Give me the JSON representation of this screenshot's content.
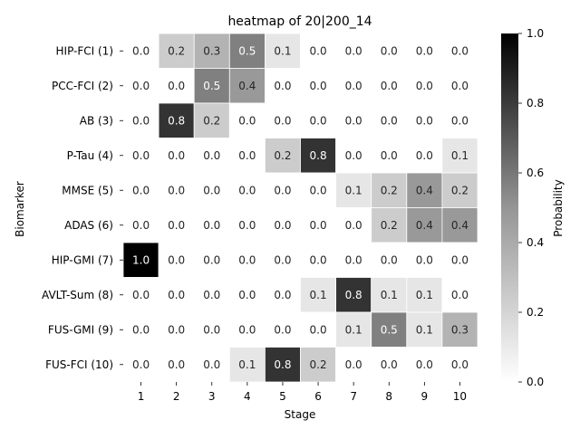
{
  "chart_data": {
    "type": "heatmap",
    "title": "heatmap of 20|200_14",
    "xlabel": "Stage",
    "ylabel": "Biomarker",
    "x_categories": [
      "1",
      "2",
      "3",
      "4",
      "5",
      "6",
      "7",
      "8",
      "9",
      "10"
    ],
    "y_categories": [
      "HIP-FCI (1)",
      "PCC-FCI (2)",
      "AB (3)",
      "P-Tau (4)",
      "MMSE (5)",
      "ADAS (6)",
      "HIP-GMI (7)",
      "AVLT-Sum (8)",
      "FUS-GMI (9)",
      "FUS-FCI (10)"
    ],
    "values": [
      [
        0.0,
        0.2,
        0.3,
        0.5,
        0.1,
        0.0,
        0.0,
        0.0,
        0.0,
        0.0
      ],
      [
        0.0,
        0.0,
        0.5,
        0.4,
        0.0,
        0.0,
        0.0,
        0.0,
        0.0,
        0.0
      ],
      [
        0.0,
        0.8,
        0.2,
        0.0,
        0.0,
        0.0,
        0.0,
        0.0,
        0.0,
        0.0
      ],
      [
        0.0,
        0.0,
        0.0,
        0.0,
        0.2,
        0.8,
        0.0,
        0.0,
        0.0,
        0.1
      ],
      [
        0.0,
        0.0,
        0.0,
        0.0,
        0.0,
        0.0,
        0.1,
        0.2,
        0.4,
        0.2
      ],
      [
        0.0,
        0.0,
        0.0,
        0.0,
        0.0,
        0.0,
        0.0,
        0.2,
        0.4,
        0.4
      ],
      [
        1.0,
        0.0,
        0.0,
        0.0,
        0.0,
        0.0,
        0.0,
        0.0,
        0.0,
        0.0
      ],
      [
        0.0,
        0.0,
        0.0,
        0.0,
        0.0,
        0.1,
        0.8,
        0.1,
        0.1,
        0.0
      ],
      [
        0.0,
        0.0,
        0.0,
        0.0,
        0.0,
        0.0,
        0.1,
        0.5,
        0.1,
        0.3
      ],
      [
        0.0,
        0.0,
        0.0,
        0.1,
        0.8,
        0.2,
        0.0,
        0.0,
        0.0,
        0.0
      ]
    ],
    "colorbar": {
      "label": "Probability",
      "range": [
        0.0,
        1.0
      ],
      "ticks": [
        "0.0",
        "0.2",
        "0.4",
        "0.6",
        "0.8",
        "1.0"
      ],
      "colormap": "Greys",
      "low_color": "#ffffff",
      "high_color": "#000000"
    },
    "cell_border_color": "#ffffff"
  }
}
